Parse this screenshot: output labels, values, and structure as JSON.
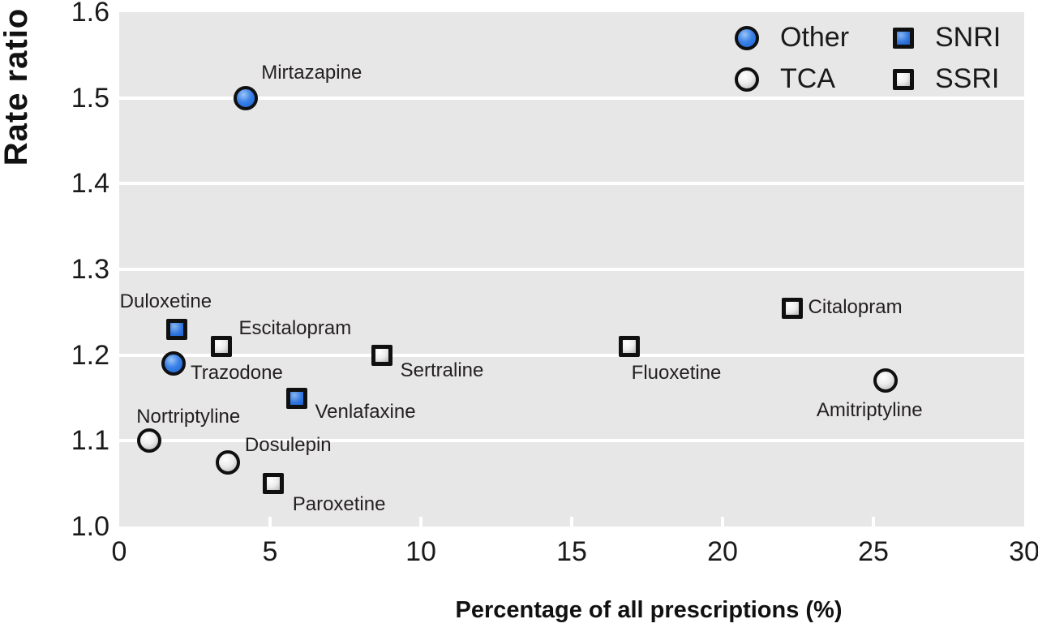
{
  "figure": {
    "x_axis_title": "Percentage of all prescriptions (%)",
    "y_axis_title": "Rate ratio"
  },
  "chart_data": {
    "type": "scatter",
    "title": "",
    "xlabel": "Percentage of all prescriptions (%)",
    "ylabel": "Rate ratio",
    "xlim": [
      0,
      30
    ],
    "ylim": [
      1.0,
      1.6
    ],
    "x_ticks": [
      0,
      5,
      10,
      15,
      20,
      25,
      30
    ],
    "y_ticks": [
      1.0,
      1.1,
      1.2,
      1.3,
      1.4,
      1.5,
      1.6
    ],
    "grid": "horizontal-white-lines-on-gray-background",
    "legend_position": "top-right-inside",
    "groups": [
      {
        "name": "Other",
        "marker": "circle",
        "fill": "blue",
        "color": "#2f7de1"
      },
      {
        "name": "TCA",
        "marker": "circle",
        "fill": "gray",
        "color": "#e0e0e0"
      },
      {
        "name": "SNRI",
        "marker": "square",
        "fill": "blue",
        "color": "#2f7de1"
      },
      {
        "name": "SSRI",
        "marker": "square",
        "fill": "gray",
        "color": "#e0e0e0"
      }
    ],
    "points": [
      {
        "name": "Mirtazapine",
        "group": "Other",
        "x": 4.2,
        "y": 1.5,
        "label_offset": [
          19,
          -31
        ]
      },
      {
        "name": "Duloxetine",
        "group": "SNRI",
        "x": 1.9,
        "y": 1.23,
        "label_offset": [
          -70,
          -34
        ]
      },
      {
        "name": "Escitalopram",
        "group": "SSRI",
        "x": 3.4,
        "y": 1.21,
        "label_offset": [
          21,
          -22
        ]
      },
      {
        "name": "Trazodone",
        "group": "Other",
        "x": 1.8,
        "y": 1.19,
        "label_offset": [
          21,
          12
        ]
      },
      {
        "name": "Venlafaxine",
        "group": "SNRI",
        "x": 5.9,
        "y": 1.15,
        "label_offset": [
          22,
          17
        ]
      },
      {
        "name": "Sertraline",
        "group": "SSRI",
        "x": 8.7,
        "y": 1.2,
        "label_offset": [
          23,
          19
        ]
      },
      {
        "name": "Fluoxetine",
        "group": "SSRI",
        "x": 16.9,
        "y": 1.21,
        "label_offset": [
          3,
          33
        ]
      },
      {
        "name": "Citalopram",
        "group": "SSRI",
        "x": 22.3,
        "y": 1.255,
        "label_offset": [
          20,
          -1
        ]
      },
      {
        "name": "Amitriptyline",
        "group": "TCA",
        "x": 25.4,
        "y": 1.17,
        "label_offset": [
          -85,
          37
        ]
      },
      {
        "name": "Nortriptyline",
        "group": "TCA",
        "x": 1.0,
        "y": 1.1,
        "label_offset": [
          -16,
          -29
        ]
      },
      {
        "name": "Dosulepin",
        "group": "TCA",
        "x": 3.6,
        "y": 1.075,
        "label_offset": [
          21,
          -21
        ]
      },
      {
        "name": "Paroxetine",
        "group": "SSRI",
        "x": 5.1,
        "y": 1.05,
        "label_offset": [
          24,
          26
        ]
      }
    ]
  },
  "colors": {
    "plot_background": "#e8e7e7",
    "gridline": "#ffffff",
    "marker_outline": "#101010",
    "blue_fill": "#2f7de1",
    "gray_fill": "#e0e0e0",
    "text": "#231f20"
  }
}
